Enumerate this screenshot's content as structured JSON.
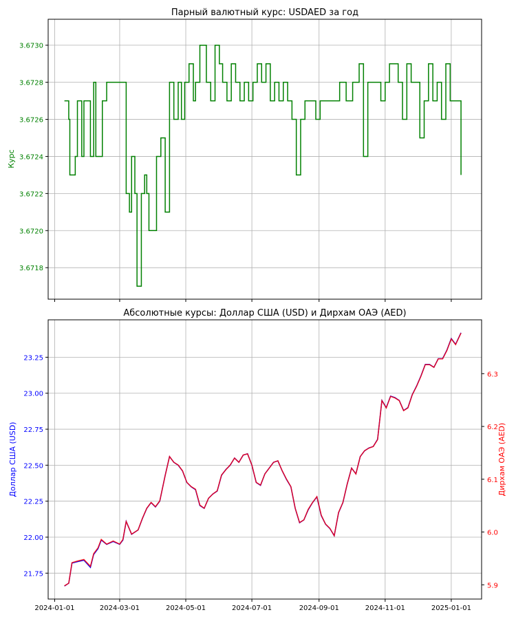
{
  "colors": {
    "top_line": "#008000",
    "top_axis": "#008000",
    "usd_axis": "#0000ff",
    "aed_line": "#ff0000",
    "aed_axis": "#ff0000",
    "grid": "#b0b0b0"
  },
  "chart_data": [
    {
      "type": "line",
      "title": "Парный валютный курс: USDAED за год",
      "ylabel": "Курс",
      "ylim": [
        3.67163,
        3.67314
      ],
      "xlim": [
        "2023-12-26",
        "2025-01-29"
      ],
      "y_ticks": [
        "3.6718",
        "3.6720",
        "3.6722",
        "3.6724",
        "3.6726",
        "3.6728",
        "3.6730"
      ],
      "grid": true,
      "series": [
        {
          "x": [
            "2024-01-10",
            "2024-01-14",
            "2024-01-15",
            "2024-01-20",
            "2024-01-22",
            "2024-01-26",
            "2024-01-28",
            "2024-02-03",
            "2024-02-06",
            "2024-02-08",
            "2024-02-14",
            "2024-02-18",
            "2024-02-21",
            "2024-02-28",
            "2024-03-04",
            "2024-03-07",
            "2024-03-10",
            "2024-03-12",
            "2024-03-15",
            "2024-03-17",
            "2024-03-21",
            "2024-03-24",
            "2024-03-26",
            "2024-03-28",
            "2024-04-01",
            "2024-04-04",
            "2024-04-08",
            "2024-04-12",
            "2024-04-16",
            "2024-04-20",
            "2024-04-24",
            "2024-04-27",
            "2024-04-30",
            "2024-05-04",
            "2024-05-08",
            "2024-05-10",
            "2024-05-14",
            "2024-05-20",
            "2024-05-24",
            "2024-05-28",
            "2024-06-01",
            "2024-06-04",
            "2024-06-08",
            "2024-06-12",
            "2024-06-16",
            "2024-06-20",
            "2024-06-24",
            "2024-06-28",
            "2024-07-02",
            "2024-07-06",
            "2024-07-10",
            "2024-07-14",
            "2024-07-18",
            "2024-07-22",
            "2024-07-26",
            "2024-07-30",
            "2024-08-03",
            "2024-08-07",
            "2024-08-11",
            "2024-08-15",
            "2024-08-19",
            "2024-08-23",
            "2024-08-26",
            "2024-08-29",
            "2024-09-02",
            "2024-09-08",
            "2024-09-14",
            "2024-09-20",
            "2024-09-26",
            "2024-10-02",
            "2024-10-08",
            "2024-10-12",
            "2024-10-16",
            "2024-10-20",
            "2024-10-24",
            "2024-10-28",
            "2024-11-01",
            "2024-11-05",
            "2024-11-09",
            "2024-11-13",
            "2024-11-17",
            "2024-11-21",
            "2024-11-25",
            "2024-11-29",
            "2024-12-03",
            "2024-12-07",
            "2024-12-11",
            "2024-12-15",
            "2024-12-19",
            "2024-12-23",
            "2024-12-27",
            "2024-12-31",
            "2025-01-04",
            "2025-01-08",
            "2025-01-10"
          ],
          "values": [
            3.6727,
            3.6726,
            3.6723,
            3.6724,
            3.6727,
            3.6724,
            3.6727,
            3.6724,
            3.6728,
            3.6724,
            3.6727,
            3.6728,
            3.6728,
            3.6728,
            3.6728,
            3.6722,
            3.6721,
            3.6724,
            3.6722,
            3.6717,
            3.6722,
            3.6723,
            3.6722,
            3.672,
            3.672,
            3.6724,
            3.6725,
            3.6721,
            3.6728,
            3.6726,
            3.6728,
            3.6726,
            3.6728,
            3.6729,
            3.6727,
            3.6728,
            3.673,
            3.6728,
            3.6727,
            3.673,
            3.6729,
            3.6728,
            3.6727,
            3.6729,
            3.6728,
            3.6727,
            3.6728,
            3.6727,
            3.6728,
            3.6729,
            3.6728,
            3.6729,
            3.6727,
            3.6728,
            3.6727,
            3.6728,
            3.6727,
            3.6726,
            3.6723,
            3.6726,
            3.6727,
            3.6727,
            3.6727,
            3.6726,
            3.6727,
            3.6727,
            3.6727,
            3.6728,
            3.6727,
            3.6728,
            3.6729,
            3.6724,
            3.6728,
            3.6728,
            3.6728,
            3.6727,
            3.6728,
            3.6729,
            3.6729,
            3.6728,
            3.6726,
            3.6729,
            3.6728,
            3.6728,
            3.6725,
            3.6727,
            3.6729,
            3.6727,
            3.6728,
            3.6726,
            3.6729,
            3.6727,
            3.6727,
            3.6727,
            3.6723
          ]
        }
      ]
    },
    {
      "type": "line",
      "title": "Абсолютные курсы: Доллар США (USD) и Дирхам ОАЭ (AED)",
      "ylabel": "Доллар США (USD)",
      "y2label": "Дирхам ОАЭ (AED)",
      "ylim": [
        21.57,
        23.51
      ],
      "y2lim": [
        5.873,
        6.402
      ],
      "xlim": [
        "2023-12-26",
        "2025-01-29"
      ],
      "y_ticks": [
        "21.75",
        "22.00",
        "22.25",
        "22.50",
        "22.75",
        "23.00",
        "23.25"
      ],
      "y2_ticks": [
        "5.9",
        "6.0",
        "6.1",
        "6.2",
        "6.3"
      ],
      "x_ticks": [
        "2024-01",
        "2024-03",
        "2024-05",
        "2024-07",
        "2024-09",
        "2024-11",
        "2025-01"
      ],
      "grid": true,
      "series": [
        {
          "name": "USD",
          "x": [
            "2024-01-10",
            "2024-01-14",
            "2024-01-17",
            "2024-01-22",
            "2024-01-28",
            "2024-02-03",
            "2024-02-06",
            "2024-02-10",
            "2024-02-13",
            "2024-02-18",
            "2024-02-24",
            "2024-03-01",
            "2024-03-04",
            "2024-03-07",
            "2024-03-12",
            "2024-03-18",
            "2024-03-22",
            "2024-03-26",
            "2024-03-30",
            "2024-04-03",
            "2024-04-07",
            "2024-04-12",
            "2024-04-16",
            "2024-04-20",
            "2024-04-24",
            "2024-04-28",
            "2024-05-02",
            "2024-05-06",
            "2024-05-10",
            "2024-05-14",
            "2024-05-18",
            "2024-05-22",
            "2024-05-26",
            "2024-05-30",
            "2024-06-03",
            "2024-06-07",
            "2024-06-11",
            "2024-06-15",
            "2024-06-19",
            "2024-06-23",
            "2024-06-27",
            "2024-07-01",
            "2024-07-05",
            "2024-07-09",
            "2024-07-13",
            "2024-07-17",
            "2024-07-21",
            "2024-07-25",
            "2024-07-29",
            "2024-08-02",
            "2024-08-06",
            "2024-08-10",
            "2024-08-14",
            "2024-08-18",
            "2024-08-22",
            "2024-08-26",
            "2024-08-30",
            "2024-09-03",
            "2024-09-07",
            "2024-09-11",
            "2024-09-15",
            "2024-09-19",
            "2024-09-23",
            "2024-09-27",
            "2024-10-01",
            "2024-10-05",
            "2024-10-09",
            "2024-10-13",
            "2024-10-17",
            "2024-10-21",
            "2024-10-25",
            "2024-10-29",
            "2024-11-02",
            "2024-11-06",
            "2024-11-10",
            "2024-11-14",
            "2024-11-18",
            "2024-11-22",
            "2024-11-26",
            "2024-11-30",
            "2024-12-04",
            "2024-12-08",
            "2024-12-12",
            "2024-12-16",
            "2024-12-20",
            "2024-12-24",
            "2024-12-28",
            "2025-01-01",
            "2025-01-05",
            "2025-01-10"
          ],
          "values": [
            21.66,
            21.68,
            21.82,
            21.83,
            21.84,
            21.79,
            21.88,
            21.92,
            21.98,
            21.95,
            21.97,
            21.95,
            21.98,
            22.11,
            22.02,
            22.05,
            22.13,
            22.2,
            22.24,
            22.21,
            22.25,
            22.43,
            22.56,
            22.52,
            22.5,
            22.46,
            22.38,
            22.35,
            22.33,
            22.22,
            22.2,
            22.27,
            22.3,
            22.32,
            22.43,
            22.47,
            22.5,
            22.55,
            22.52,
            22.57,
            22.58,
            22.5,
            22.38,
            22.36,
            22.44,
            22.48,
            22.52,
            22.53,
            22.46,
            22.4,
            22.35,
            22.2,
            22.1,
            22.12,
            22.19,
            22.24,
            22.28,
            22.15,
            22.09,
            22.06,
            22.01,
            22.17,
            22.24,
            22.37,
            22.48,
            22.44,
            22.56,
            22.6,
            22.62,
            22.63,
            22.68,
            22.95,
            22.9,
            22.98,
            22.97,
            22.95,
            22.88,
            22.9,
            22.99,
            23.05,
            23.12,
            23.2,
            23.2,
            23.18,
            23.24,
            23.24,
            23.3,
            23.38,
            23.34,
            23.42
          ]
        },
        {
          "name": "AED",
          "x": [
            "2024-01-10",
            "2024-01-14",
            "2024-01-17",
            "2024-01-22",
            "2024-01-28",
            "2024-02-03",
            "2024-02-06",
            "2024-02-10",
            "2024-02-13",
            "2024-02-18",
            "2024-02-24",
            "2024-03-01",
            "2024-03-04",
            "2024-03-07",
            "2024-03-12",
            "2024-03-18",
            "2024-03-22",
            "2024-03-26",
            "2024-03-30",
            "2024-04-03",
            "2024-04-07",
            "2024-04-12",
            "2024-04-16",
            "2024-04-20",
            "2024-04-24",
            "2024-04-28",
            "2024-05-02",
            "2024-05-06",
            "2024-05-10",
            "2024-05-14",
            "2024-05-18",
            "2024-05-22",
            "2024-05-26",
            "2024-05-30",
            "2024-06-03",
            "2024-06-07",
            "2024-06-11",
            "2024-06-15",
            "2024-06-19",
            "2024-06-23",
            "2024-06-27",
            "2024-07-01",
            "2024-07-05",
            "2024-07-09",
            "2024-07-13",
            "2024-07-17",
            "2024-07-21",
            "2024-07-25",
            "2024-07-29",
            "2024-08-02",
            "2024-08-06",
            "2024-08-10",
            "2024-08-14",
            "2024-08-18",
            "2024-08-22",
            "2024-08-26",
            "2024-08-30",
            "2024-09-03",
            "2024-09-07",
            "2024-09-11",
            "2024-09-15",
            "2024-09-19",
            "2024-09-23",
            "2024-09-27",
            "2024-10-01",
            "2024-10-05",
            "2024-10-09",
            "2024-10-13",
            "2024-10-17",
            "2024-10-21",
            "2024-10-25",
            "2024-10-29",
            "2024-11-02",
            "2024-11-06",
            "2024-11-10",
            "2024-11-14",
            "2024-11-18",
            "2024-11-22",
            "2024-11-26",
            "2024-11-30",
            "2024-12-04",
            "2024-12-08",
            "2024-12-12",
            "2024-12-16",
            "2024-12-20",
            "2024-12-24",
            "2024-12-28",
            "2025-01-01",
            "2025-01-05",
            "2025-01-10"
          ],
          "values": [
            5.898,
            5.903,
            5.942,
            5.945,
            5.948,
            5.935,
            5.959,
            5.97,
            5.986,
            5.977,
            5.983,
            5.977,
            5.986,
            6.02,
            5.996,
            6.004,
            6.026,
            6.045,
            6.056,
            6.048,
            6.059,
            6.107,
            6.143,
            6.132,
            6.127,
            6.116,
            6.094,
            6.086,
            6.081,
            6.051,
            6.045,
            6.064,
            6.072,
            6.078,
            6.108,
            6.118,
            6.127,
            6.14,
            6.132,
            6.146,
            6.148,
            6.127,
            6.094,
            6.089,
            6.11,
            6.121,
            6.132,
            6.135,
            6.116,
            6.1,
            6.086,
            6.045,
            6.018,
            6.023,
            6.043,
            6.056,
            6.067,
            6.032,
            6.015,
            6.007,
            5.993,
            6.037,
            6.056,
            6.091,
            6.121,
            6.11,
            6.143,
            6.154,
            6.159,
            6.162,
            6.175,
            6.249,
            6.235,
            6.257,
            6.254,
            6.249,
            6.23,
            6.235,
            6.26,
            6.276,
            6.295,
            6.317,
            6.317,
            6.312,
            6.328,
            6.328,
            6.344,
            6.366,
            6.355,
            6.377
          ]
        }
      ]
    }
  ]
}
